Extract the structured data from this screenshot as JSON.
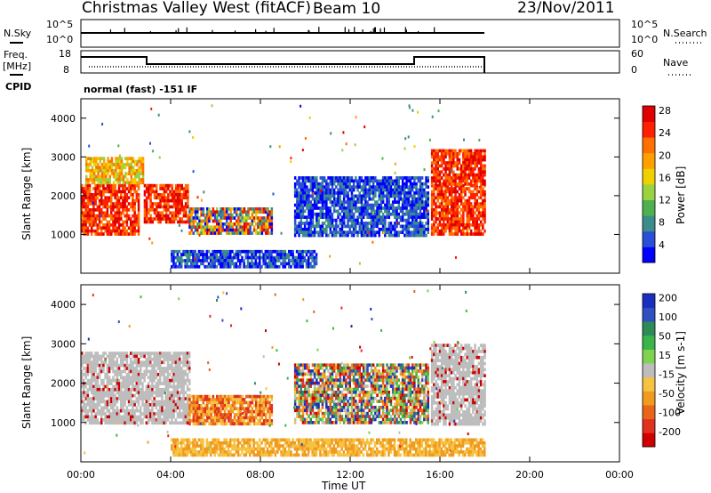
{
  "header": {
    "station": "Christmas Valley West (fitACF)",
    "beam": "Beam 10",
    "date": "23/Nov/2011"
  },
  "side_labels": {
    "nsky": "N.Sky",
    "freq": "Freq.",
    "freq_unit": "[MHz]",
    "cpid": "CPID",
    "nsearch": "N.Search",
    "nave": "Nave"
  },
  "cpid_text": "normal (fast) -151 IF",
  "noise_ticks_left": [
    "10^5",
    "10^0"
  ],
  "noise_ticks_right": [
    "10^5",
    "10^0"
  ],
  "freq_ticks_left": [
    "18",
    "8"
  ],
  "freq_ticks_right": [
    "60",
    "0"
  ],
  "chart_data": [
    {
      "type": "heatmap",
      "name": "power",
      "ylabel": "Slant Range [km]",
      "xlabel": "Time UT",
      "x_ticks": [
        "00:00",
        "04:00",
        "08:00",
        "12:00",
        "16:00",
        "20:00",
        "00:00"
      ],
      "y_ticks": [
        1000,
        2000,
        3000,
        4000
      ],
      "colorbar": {
        "label": "Power [dB]",
        "ticks": [
          4,
          8,
          12,
          16,
          20,
          24,
          28
        ]
      },
      "data_time_range_h": [
        0,
        18
      ],
      "echo_regions": [
        {
          "t": [
            0.0,
            2.6
          ],
          "range_km": [
            1000,
            2300
          ],
          "level": "high"
        },
        {
          "t": [
            0.2,
            2.8
          ],
          "range_km": [
            2300,
            3000
          ],
          "level": "mid"
        },
        {
          "t": [
            2.8,
            4.8
          ],
          "range_km": [
            1300,
            2300
          ],
          "level": "high"
        },
        {
          "t": [
            4.8,
            8.5
          ],
          "range_km": [
            1000,
            1700
          ],
          "level": "mixed"
        },
        {
          "t": [
            4.0,
            10.5
          ],
          "range_km": [
            200,
            600
          ],
          "level": "low"
        },
        {
          "t": [
            9.5,
            15.5
          ],
          "range_km": [
            1000,
            2500
          ],
          "level": "low"
        },
        {
          "t": [
            15.6,
            18.0
          ],
          "range_km": [
            1000,
            2300
          ],
          "level": "high"
        },
        {
          "t": [
            15.6,
            18.0
          ],
          "range_km": [
            2300,
            3200
          ],
          "level": "high"
        }
      ]
    },
    {
      "type": "heatmap",
      "name": "velocity",
      "ylabel": "Slant Range [km]",
      "xlabel": "Time UT",
      "x_ticks": [
        "00:00",
        "04:00",
        "08:00",
        "12:00",
        "16:00",
        "20:00",
        "00:00"
      ],
      "y_ticks": [
        1000,
        2000,
        3000,
        4000
      ],
      "colorbar": {
        "label": "Velocity [m s-1]",
        "ticks": [
          200,
          100,
          50,
          15,
          -15,
          -50,
          -100,
          -200
        ]
      },
      "data_time_range_h": [
        0,
        18
      ],
      "echo_regions": [
        {
          "t": [
            0.0,
            4.8
          ],
          "range_km": [
            1000,
            2800
          ],
          "level": "ground"
        },
        {
          "t": [
            4.8,
            8.5
          ],
          "range_km": [
            1000,
            1700
          ],
          "level": "away"
        },
        {
          "t": [
            4.0,
            18.0
          ],
          "range_km": [
            200,
            600
          ],
          "level": "away_weak"
        },
        {
          "t": [
            9.5,
            15.5
          ],
          "range_km": [
            1000,
            2500
          ],
          "level": "mixed"
        },
        {
          "t": [
            15.6,
            18.0
          ],
          "range_km": [
            1000,
            3000
          ],
          "level": "ground"
        }
      ]
    }
  ]
}
